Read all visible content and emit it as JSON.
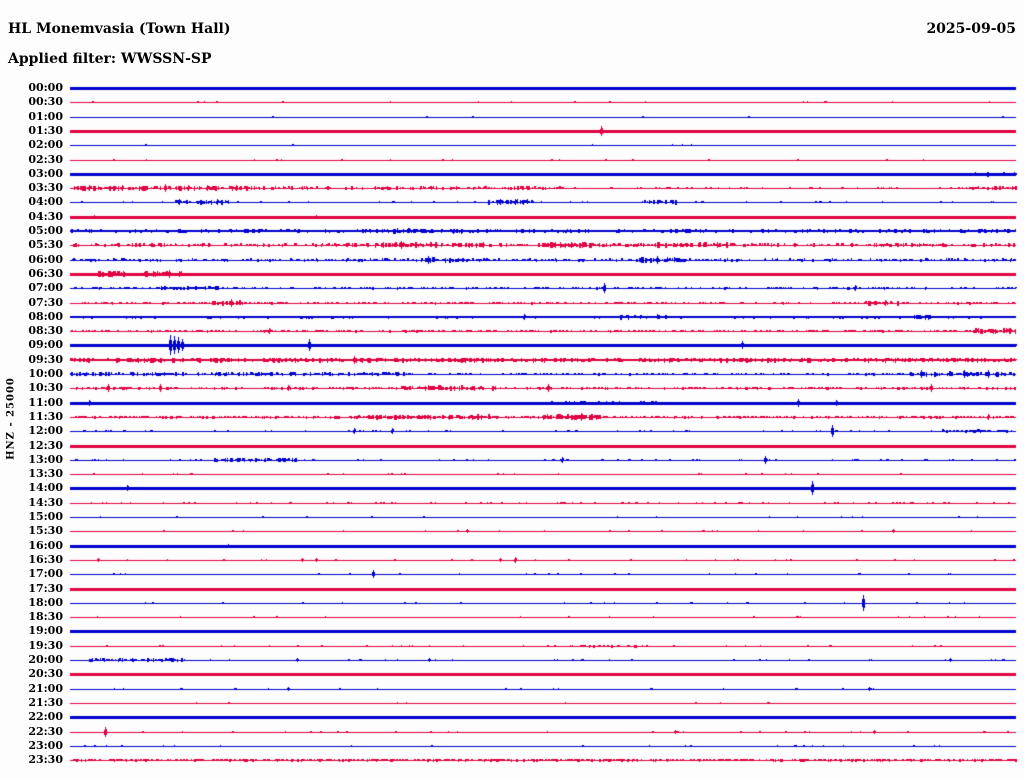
{
  "header": {
    "station_title": "HL Monemvasia (Town Hall)",
    "date": "2025-09-05",
    "filter_line": "Applied filter: WWSSN-SP"
  },
  "axis": {
    "channel_scale_label": "HNZ - 25000"
  },
  "colors": {
    "blue": "#0000CD",
    "red": "#E00040",
    "background": "#FDFDFD",
    "text": "#000000"
  },
  "chart_data": {
    "type": "line",
    "variant": "helicorder-seismogram",
    "title": "HL Monemvasia (Town Hall)",
    "date": "2025-09-05",
    "filter": "WWSSN-SP",
    "channel": "HNZ",
    "scale": 25000,
    "row_interval_minutes": 30,
    "x_range_minutes": [
      0,
      30
    ],
    "xlabel": "",
    "ylabel": "HNZ - 25000",
    "grid": false,
    "legend_position": "none",
    "rows": [
      {
        "time": "00:00",
        "color": "blue",
        "weight": 3,
        "noise": [
          [
            0,
            1,
            0.3,
            0.015
          ]
        ],
        "spikes": []
      },
      {
        "time": "00:30",
        "color": "red",
        "weight": 1,
        "noise": [
          [
            0,
            1,
            0.3,
            0.02
          ]
        ],
        "spikes": []
      },
      {
        "time": "01:00",
        "color": "blue",
        "weight": 1,
        "noise": [
          [
            0,
            1,
            0.3,
            0.02
          ]
        ],
        "spikes": []
      },
      {
        "time": "01:30",
        "color": "red",
        "weight": 3,
        "noise": [
          [
            0,
            1,
            0.3,
            0.02
          ]
        ],
        "spikes": [
          [
            0.561,
            5
          ]
        ]
      },
      {
        "time": "02:00",
        "color": "blue",
        "weight": 1,
        "noise": [
          [
            0,
            1,
            0.3,
            0.02
          ]
        ],
        "spikes": []
      },
      {
        "time": "02:30",
        "color": "red",
        "weight": 1,
        "noise": [
          [
            0,
            1,
            0.3,
            0.02
          ]
        ],
        "spikes": []
      },
      {
        "time": "03:00",
        "color": "blue",
        "weight": 3,
        "noise": [
          [
            0,
            1,
            0.3,
            0.015
          ],
          [
            0.955,
            1,
            2,
            0.5
          ]
        ],
        "spikes": []
      },
      {
        "time": "03:30",
        "color": "red",
        "weight": 1,
        "noise": [
          [
            0,
            0.2,
            2.2,
            0.55
          ],
          [
            0.2,
            0.52,
            1.6,
            0.3
          ],
          [
            0.52,
            0.95,
            0.7,
            0.1
          ],
          [
            0.95,
            1,
            1.8,
            0.5
          ]
        ],
        "spikes": [
          [
            0.02,
            3
          ],
          [
            0.055,
            3
          ],
          [
            0.1,
            4
          ],
          [
            0.125,
            3
          ],
          [
            0.145,
            3
          ],
          [
            0.175,
            3
          ]
        ]
      },
      {
        "time": "04:00",
        "color": "blue",
        "weight": 1,
        "noise": [
          [
            0,
            1,
            0.4,
            0.05
          ],
          [
            0.11,
            0.17,
            2.2,
            0.5
          ],
          [
            0.44,
            0.49,
            2.4,
            0.55
          ],
          [
            0.6,
            0.64,
            2.2,
            0.5
          ]
        ],
        "spikes": [
          [
            0.115,
            3
          ],
          [
            0.155,
            3
          ],
          [
            0.455,
            3
          ],
          [
            0.47,
            3
          ]
        ]
      },
      {
        "time": "04:30",
        "color": "red",
        "weight": 3,
        "noise": [
          [
            0,
            1,
            0.5,
            0.05
          ]
        ],
        "spikes": [
          [
            0.025,
            2
          ],
          [
            0.26,
            2
          ]
        ]
      },
      {
        "time": "05:00",
        "color": "blue",
        "weight": 2,
        "noise": [
          [
            0,
            1,
            1.6,
            0.45
          ],
          [
            0.33,
            0.42,
            2.2,
            0.55
          ]
        ],
        "spikes": []
      },
      {
        "time": "05:30",
        "color": "red",
        "weight": 1,
        "noise": [
          [
            0,
            1,
            1.6,
            0.4
          ],
          [
            0.32,
            0.45,
            2.6,
            0.6
          ],
          [
            0.5,
            0.56,
            2.6,
            0.6
          ],
          [
            0.62,
            0.7,
            2.6,
            0.5
          ]
        ],
        "spikes": [
          [
            0.35,
            4
          ],
          [
            0.53,
            3
          ]
        ]
      },
      {
        "time": "06:00",
        "color": "blue",
        "weight": 1,
        "noise": [
          [
            0,
            1,
            1.3,
            0.35
          ],
          [
            0.37,
            0.42,
            2.6,
            0.6
          ],
          [
            0.6,
            0.65,
            2.6,
            0.6
          ]
        ],
        "spikes": [
          [
            0.378,
            4
          ],
          [
            0.62,
            4
          ]
        ]
      },
      {
        "time": "06:30",
        "color": "red",
        "weight": 3,
        "noise": [
          [
            0,
            1,
            1.1,
            0.3
          ],
          [
            0.03,
            0.12,
            2.6,
            0.6
          ]
        ],
        "spikes": [
          [
            0.105,
            4
          ]
        ]
      },
      {
        "time": "07:00",
        "color": "blue",
        "weight": 1,
        "noise": [
          [
            0,
            1,
            0.9,
            0.25
          ],
          [
            0.09,
            0.16,
            1.8,
            0.5
          ]
        ],
        "spikes": [
          [
            0.565,
            5
          ],
          [
            0.83,
            3
          ]
        ]
      },
      {
        "time": "07:30",
        "color": "red",
        "weight": 1,
        "noise": [
          [
            0,
            1,
            0.9,
            0.3
          ],
          [
            0.15,
            0.19,
            2.6,
            0.6
          ],
          [
            0.84,
            0.88,
            2.2,
            0.5
          ]
        ],
        "spikes": [
          [
            0.17,
            4
          ],
          [
            0.862,
            3
          ]
        ]
      },
      {
        "time": "08:00",
        "color": "blue",
        "weight": 2,
        "noise": [
          [
            0,
            1,
            1.1,
            0.35
          ],
          [
            0.58,
            0.63,
            2.2,
            0.5
          ],
          [
            0.89,
            0.92,
            2.2,
            0.5
          ]
        ],
        "spikes": [
          [
            0.48,
            3
          ]
        ]
      },
      {
        "time": "08:30",
        "color": "red",
        "weight": 1,
        "noise": [
          [
            0,
            1,
            0.9,
            0.3
          ],
          [
            0.955,
            1,
            2.6,
            0.8
          ]
        ],
        "spikes": [
          [
            0.21,
            3
          ]
        ]
      },
      {
        "time": "09:00",
        "color": "blue",
        "weight": 3,
        "noise": [
          [
            0,
            1,
            0.7,
            0.15
          ]
        ],
        "spikes": [
          [
            0.106,
            10
          ],
          [
            0.11,
            9
          ],
          [
            0.114,
            8
          ],
          [
            0.118,
            6
          ],
          [
            0.253,
            6
          ],
          [
            0.71,
            4
          ]
        ]
      },
      {
        "time": "09:30",
        "color": "red",
        "weight": 2,
        "noise": [
          [
            0,
            1,
            2,
            0.75
          ]
        ],
        "spikes": [
          [
            0.3,
            4
          ]
        ]
      },
      {
        "time": "10:00",
        "color": "blue",
        "weight": 1,
        "noise": [
          [
            0,
            0.36,
            1.8,
            0.55
          ],
          [
            0.36,
            0.88,
            0.9,
            0.25
          ],
          [
            0.88,
            1,
            2.2,
            0.5
          ]
        ],
        "spikes": [
          [
            0.9,
            4
          ],
          [
            0.945,
            4
          ],
          [
            0.97,
            4
          ]
        ]
      },
      {
        "time": "10:30",
        "color": "red",
        "weight": 1,
        "noise": [
          [
            0,
            1,
            1.1,
            0.3
          ],
          [
            0.35,
            0.45,
            2.2,
            0.5
          ]
        ],
        "spikes": [
          [
            0.04,
            4
          ],
          [
            0.095,
            4
          ],
          [
            0.23,
            3
          ],
          [
            0.505,
            4
          ],
          [
            0.91,
            4
          ]
        ]
      },
      {
        "time": "11:00",
        "color": "blue",
        "weight": 3,
        "noise": [
          [
            0,
            1,
            0.9,
            0.25
          ],
          [
            0.5,
            0.63,
            1.8,
            0.5
          ]
        ],
        "spikes": [
          [
            0.02,
            3
          ],
          [
            0.77,
            4
          ],
          [
            0.81,
            3
          ]
        ]
      },
      {
        "time": "11:30",
        "color": "red",
        "weight": 1,
        "noise": [
          [
            0,
            1,
            1.1,
            0.35
          ],
          [
            0.3,
            0.45,
            2.4,
            0.6
          ],
          [
            0.5,
            0.56,
            2.6,
            0.65
          ]
        ],
        "spikes": [
          [
            0.54,
            4
          ],
          [
            0.97,
            3
          ]
        ]
      },
      {
        "time": "12:00",
        "color": "blue",
        "weight": 1,
        "noise": [
          [
            0,
            1,
            0.4,
            0.1
          ],
          [
            0.92,
            0.99,
            1.3,
            0.4
          ]
        ],
        "spikes": [
          [
            0.3,
            3
          ],
          [
            0.34,
            3
          ],
          [
            0.806,
            6
          ]
        ]
      },
      {
        "time": "12:30",
        "color": "red",
        "weight": 3,
        "noise": [
          [
            0,
            1,
            0.3,
            0.03
          ]
        ],
        "spikes": []
      },
      {
        "time": "13:00",
        "color": "blue",
        "weight": 1,
        "noise": [
          [
            0,
            1,
            0.4,
            0.08
          ],
          [
            0.15,
            0.24,
            1.8,
            0.5
          ]
        ],
        "spikes": [
          [
            0.52,
            3
          ],
          [
            0.735,
            4
          ]
        ]
      },
      {
        "time": "13:30",
        "color": "red",
        "weight": 1,
        "noise": [
          [
            0,
            1,
            0.3,
            0.03
          ]
        ],
        "spikes": []
      },
      {
        "time": "14:00",
        "color": "blue",
        "weight": 3,
        "noise": [
          [
            0,
            1,
            0.3,
            0.05
          ]
        ],
        "spikes": [
          [
            0.06,
            3
          ],
          [
            0.784,
            7
          ]
        ]
      },
      {
        "time": "14:30",
        "color": "red",
        "weight": 1,
        "noise": [
          [
            0,
            1,
            0.5,
            0.1
          ]
        ],
        "spikes": []
      },
      {
        "time": "15:00",
        "color": "blue",
        "weight": 1,
        "noise": [
          [
            0,
            1,
            0.3,
            0.05
          ]
        ],
        "spikes": []
      },
      {
        "time": "15:30",
        "color": "red",
        "weight": 1,
        "noise": [
          [
            0,
            1,
            0.3,
            0.04
          ]
        ],
        "spikes": [
          [
            0.42,
            2
          ],
          [
            0.87,
            2
          ]
        ]
      },
      {
        "time": "16:00",
        "color": "blue",
        "weight": 3,
        "noise": [
          [
            0,
            1,
            0.3,
            0.03
          ]
        ],
        "spikes": [
          [
            0.167,
            2
          ]
        ]
      },
      {
        "time": "16:30",
        "color": "red",
        "weight": 1,
        "noise": [
          [
            0,
            1,
            0.3,
            0.05
          ]
        ],
        "spikes": [
          [
            0.03,
            2
          ],
          [
            0.245,
            2
          ],
          [
            0.26,
            2
          ],
          [
            0.455,
            2
          ],
          [
            0.47,
            3
          ]
        ]
      },
      {
        "time": "17:00",
        "color": "blue",
        "weight": 1,
        "noise": [
          [
            0,
            1,
            0.3,
            0.04
          ]
        ],
        "spikes": [
          [
            0.32,
            4
          ]
        ]
      },
      {
        "time": "17:30",
        "color": "red",
        "weight": 3,
        "noise": [
          [
            0,
            1,
            0.25,
            0.02
          ]
        ],
        "spikes": []
      },
      {
        "time": "18:00",
        "color": "blue",
        "weight": 1,
        "noise": [
          [
            0,
            1,
            0.25,
            0.04
          ]
        ],
        "spikes": [
          [
            0.838,
            8
          ]
        ]
      },
      {
        "time": "18:30",
        "color": "red",
        "weight": 1,
        "noise": [
          [
            0,
            1,
            0.25,
            0.03
          ]
        ],
        "spikes": []
      },
      {
        "time": "19:00",
        "color": "blue",
        "weight": 3,
        "noise": [
          [
            0,
            1,
            0.25,
            0.02
          ]
        ],
        "spikes": []
      },
      {
        "time": "19:30",
        "color": "red",
        "weight": 1,
        "noise": [
          [
            0,
            1,
            0.3,
            0.05
          ],
          [
            0.49,
            0.61,
            0.9,
            0.25
          ]
        ],
        "spikes": []
      },
      {
        "time": "20:00",
        "color": "blue",
        "weight": 1,
        "noise": [
          [
            0,
            1,
            0.3,
            0.05
          ],
          [
            0.02,
            0.12,
            1.8,
            0.5
          ]
        ],
        "spikes": [
          [
            0.24,
            2
          ],
          [
            0.38,
            2
          ],
          [
            0.93,
            2
          ]
        ]
      },
      {
        "time": "20:30",
        "color": "red",
        "weight": 3,
        "noise": [
          [
            0,
            1,
            0.25,
            0.02
          ]
        ],
        "spikes": []
      },
      {
        "time": "21:00",
        "color": "blue",
        "weight": 1,
        "noise": [
          [
            0,
            1,
            0.25,
            0.03
          ]
        ],
        "spikes": [
          [
            0.23,
            2
          ],
          [
            0.845,
            2
          ]
        ]
      },
      {
        "time": "21:30",
        "color": "red",
        "weight": 1,
        "noise": [
          [
            0,
            1,
            0.25,
            0.02
          ]
        ],
        "spikes": []
      },
      {
        "time": "22:00",
        "color": "blue",
        "weight": 3,
        "noise": [
          [
            0,
            1,
            0.25,
            0.02
          ]
        ],
        "spikes": []
      },
      {
        "time": "22:30",
        "color": "red",
        "weight": 1,
        "noise": [
          [
            0,
            1,
            0.3,
            0.05
          ]
        ],
        "spikes": [
          [
            0.037,
            5
          ],
          [
            0.64,
            2
          ],
          [
            0.85,
            2
          ]
        ]
      },
      {
        "time": "23:00",
        "color": "blue",
        "weight": 1,
        "noise": [
          [
            0,
            1,
            0.25,
            0.03
          ]
        ],
        "spikes": []
      },
      {
        "time": "23:30",
        "color": "red",
        "weight": 1,
        "noise": [
          [
            0,
            1,
            1.1,
            0.5
          ]
        ],
        "spikes": []
      }
    ]
  }
}
